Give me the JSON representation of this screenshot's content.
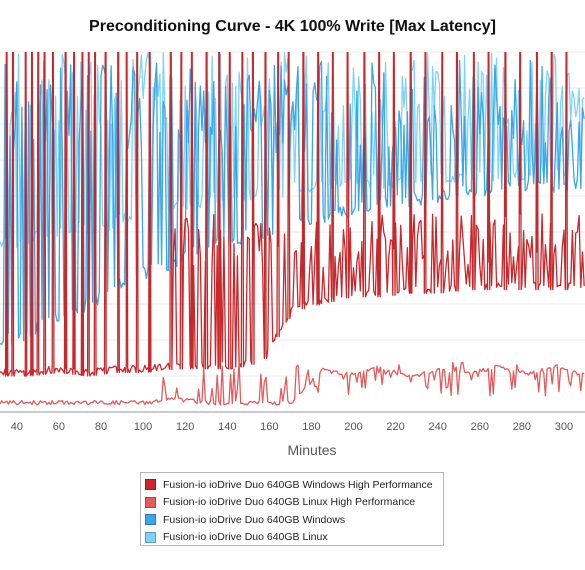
{
  "chart_data": {
    "type": "line",
    "title": "Preconditioning Curve - 4K 100% Write [Max Latency]",
    "xlabel": "Minutes",
    "ylabel": "",
    "xlim": [
      32,
      310
    ],
    "ylim": [
      0,
      100
    ],
    "x_ticks": [
      40,
      60,
      80,
      100,
      120,
      140,
      160,
      180,
      200,
      220,
      240,
      260,
      280,
      300
    ],
    "y_ticks_shown": false,
    "grid": "horizontal",
    "legend_position": "bottom",
    "series": [
      {
        "name": "Fusion-io ioDrive Duo 640GB Windows High Performance",
        "color": "#c8282c",
        "baseline": [
          10,
          10,
          11,
          10,
          11,
          11,
          12,
          12,
          12,
          14,
          28,
          30,
          32,
          32,
          33,
          33,
          34,
          34,
          34,
          34,
          34
        ],
        "peak_range": [
          40,
          55
        ],
        "spike_level": 100,
        "spike_minutes": [
          35,
          38,
          44,
          47,
          50,
          53,
          57,
          63,
          67,
          71,
          74,
          77,
          82,
          88,
          92,
          97,
          103,
          113,
          118,
          123,
          130,
          136,
          141,
          147,
          152,
          158,
          164,
          169,
          176,
          183,
          190,
          197,
          205,
          212,
          219,
          227,
          234,
          242,
          249,
          257,
          264,
          272,
          279,
          287,
          294,
          301
        ]
      },
      {
        "name": "Fusion-io ioDrive Duo 640GB Linux High Performance",
        "color": "#e35b5c",
        "baseline": [
          2,
          2,
          2,
          2,
          2,
          2,
          3,
          2,
          2,
          2,
          2,
          11,
          10,
          12,
          9,
          11,
          10,
          12,
          10,
          12,
          10
        ],
        "peak_range": [
          4,
          14
        ]
      },
      {
        "name": "Fusion-io ioDrive Duo 640GB Windows",
        "color": "#3aa6e6",
        "baseline": [
          18,
          20,
          24,
          28,
          33,
          37,
          40,
          44,
          46,
          48,
          50,
          52,
          54,
          56,
          57,
          58,
          59,
          60,
          61,
          61,
          62
        ],
        "peak_range": [
          72,
          98
        ]
      },
      {
        "name": "Fusion-io ioDrive Duo 640GB Linux",
        "color": "#7fd3f7",
        "baseline": [
          45,
          46,
          48,
          49,
          51,
          53,
          55,
          57,
          58,
          59,
          60,
          61,
          62,
          62,
          63,
          63,
          64,
          64,
          64,
          65,
          65
        ],
        "peak_range": [
          78,
          100
        ]
      }
    ]
  }
}
